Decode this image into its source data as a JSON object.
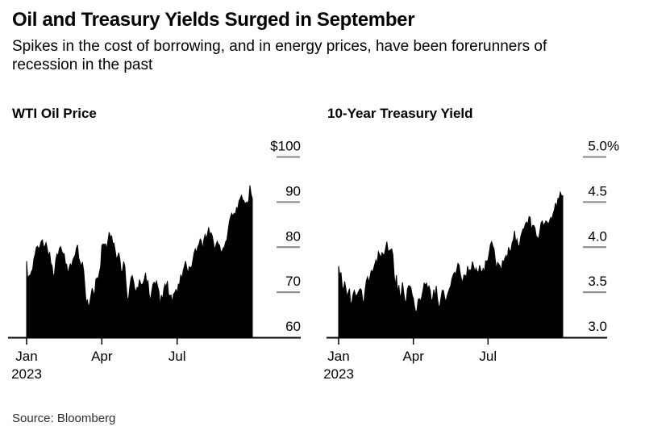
{
  "header": {
    "title": "Oil and Treasury Yields Surged in September",
    "subtitle_line1": "Spikes in the cost of borrowing, and in energy prices, have been forerunners of",
    "subtitle_line2": "recession in the past"
  },
  "source_note": "Source: Bloomberg",
  "colors": {
    "area_fill": "#000000",
    "axis_line": "#000000",
    "grid_tick": "#878787",
    "background": "#ffffff"
  },
  "chart_data": [
    {
      "type": "area",
      "title": "WTI Oil Price",
      "ylim": [
        60,
        100
      ],
      "y_ticks": [
        {
          "label": "$100",
          "value": 100
        },
        {
          "label": "90",
          "value": 90
        },
        {
          "label": "80",
          "value": 80
        },
        {
          "label": "70",
          "value": 70
        },
        {
          "label": "60",
          "value": 60
        }
      ],
      "x_ticks": [
        {
          "label": "Jan",
          "sublabel": "2023",
          "index": 0
        },
        {
          "label": "Apr",
          "index": 62
        },
        {
          "label": "Jul",
          "index": 124
        }
      ],
      "fill_color": "#000000",
      "values": [
        76.9,
        72.8,
        73.7,
        73.8,
        74.6,
        75.1,
        77.4,
        78.4,
        79.9,
        80.2,
        79.5,
        80.3,
        81.3,
        81.6,
        80.1,
        80.2,
        81.0,
        79.7,
        77.9,
        78.9,
        76.4,
        75.9,
        73.4,
        74.1,
        77.1,
        78.5,
        78.1,
        79.7,
        80.1,
        79.1,
        78.6,
        78.5,
        76.3,
        76.2,
        74.0,
        75.4,
        76.3,
        75.7,
        77.1,
        77.7,
        78.2,
        79.7,
        80.5,
        77.6,
        76.7,
        75.7,
        76.7,
        74.8,
        71.3,
        67.6,
        68.4,
        66.7,
        67.6,
        69.3,
        70.9,
        70.0,
        69.3,
        72.8,
        73.2,
        73.0,
        74.4,
        75.7,
        80.4,
        80.7,
        80.6,
        80.7,
        79.7,
        81.5,
        83.3,
        82.2,
        82.5,
        80.8,
        80.9,
        79.2,
        77.4,
        77.9,
        78.8,
        77.1,
        74.3,
        74.8,
        76.8,
        75.7,
        71.7,
        68.6,
        68.6,
        71.3,
        73.2,
        73.7,
        72.6,
        70.9,
        70.0,
        71.1,
        70.9,
        72.8,
        71.9,
        71.6,
        72.0,
        72.9,
        74.3,
        71.8,
        72.7,
        69.5,
        68.1,
        70.1,
        71.7,
        72.2,
        71.7,
        72.5,
        71.3,
        70.2,
        67.1,
        69.4,
        68.3,
        70.6,
        71.8,
        71.2,
        72.5,
        69.5,
        69.2,
        69.4,
        67.7,
        69.6,
        69.9,
        70.6,
        69.8,
        71.8,
        71.8,
        73.9,
        73.0,
        74.8,
        75.8,
        76.9,
        75.4,
        74.2,
        75.7,
        75.4,
        75.6,
        77.1,
        78.7,
        79.6,
        78.8,
        80.1,
        80.6,
        81.8,
        81.4,
        79.5,
        81.6,
        82.8,
        81.9,
        82.9,
        84.4,
        82.8,
        83.2,
        82.5,
        81.0,
        79.4,
        80.4,
        81.3,
        80.7,
        80.4,
        78.9,
        79.1,
        79.8,
        80.1,
        81.2,
        81.6,
        83.6,
        85.6,
        86.7,
        87.5,
        86.9,
        87.5,
        87.3,
        88.8,
        88.5,
        90.2,
        90.8,
        91.5,
        90.5,
        90.3,
        89.6,
        90.0,
        89.7,
        90.4,
        93.7,
        91.7,
        90.8
      ]
    },
    {
      "type": "area",
      "title": "10-Year Treasury Yield",
      "ylim": [
        3.0,
        5.0
      ],
      "y_ticks": [
        {
          "label": "5.0",
          "suffix": "%",
          "value": 5.0
        },
        {
          "label": "4.5",
          "value": 4.5
        },
        {
          "label": "4.0",
          "value": 4.0
        },
        {
          "label": "3.5",
          "value": 3.5
        },
        {
          "label": "3.0",
          "value": 3.0
        }
      ],
      "x_ticks": [
        {
          "label": "Jan",
          "sublabel": "2023",
          "index": 0
        },
        {
          "label": "Apr",
          "index": 62
        },
        {
          "label": "Jul",
          "index": 124
        }
      ],
      "fill_color": "#000000",
      "values": [
        3.79,
        3.69,
        3.72,
        3.56,
        3.53,
        3.62,
        3.54,
        3.45,
        3.5,
        3.54,
        3.37,
        3.39,
        3.48,
        3.52,
        3.47,
        3.46,
        3.49,
        3.52,
        3.54,
        3.52,
        3.4,
        3.4,
        3.53,
        3.63,
        3.67,
        3.61,
        3.67,
        3.74,
        3.72,
        3.76,
        3.81,
        3.86,
        3.82,
        3.95,
        3.92,
        3.88,
        3.94,
        3.92,
        3.92,
        3.99,
        4.06,
        3.96,
        3.96,
        3.97,
        3.98,
        3.92,
        3.7,
        3.57,
        3.69,
        3.49,
        3.58,
        3.43,
        3.49,
        3.61,
        3.5,
        3.41,
        3.38,
        3.53,
        3.57,
        3.57,
        3.55,
        3.47,
        3.43,
        3.34,
        3.28,
        3.3,
        3.42,
        3.43,
        3.4,
        3.45,
        3.52,
        3.6,
        3.58,
        3.6,
        3.54,
        3.57,
        3.52,
        3.4,
        3.43,
        3.53,
        3.44,
        3.57,
        3.43,
        3.34,
        3.35,
        3.44,
        3.52,
        3.52,
        3.44,
        3.39,
        3.46,
        3.5,
        3.54,
        3.57,
        3.65,
        3.69,
        3.72,
        3.7,
        3.75,
        3.82,
        3.8,
        3.7,
        3.64,
        3.61,
        3.69,
        3.69,
        3.66,
        3.79,
        3.73,
        3.75,
        3.74,
        3.84,
        3.79,
        3.73,
        3.77,
        3.73,
        3.72,
        3.8,
        3.74,
        3.72,
        3.77,
        3.71,
        3.85,
        3.84,
        3.86,
        3.94,
        4.03,
        4.06,
        4.01,
        3.98,
        3.86,
        3.76,
        3.83,
        3.81,
        3.79,
        3.74,
        3.85,
        3.84,
        3.88,
        3.91,
        3.87,
        4.0,
        3.96,
        3.96,
        4.05,
        4.08,
        4.18,
        4.05,
        4.09,
        4.02,
        4.01,
        4.11,
        4.16,
        4.2,
        4.21,
        4.26,
        4.28,
        4.25,
        4.34,
        4.33,
        4.19,
        4.24,
        4.24,
        4.21,
        4.12,
        4.11,
        4.09,
        4.18,
        4.27,
        4.29,
        4.24,
        4.26,
        4.29,
        4.28,
        4.25,
        4.29,
        4.33,
        4.31,
        4.37,
        4.41,
        4.49,
        4.44,
        4.54,
        4.54,
        4.61,
        4.57,
        4.57
      ]
    }
  ]
}
